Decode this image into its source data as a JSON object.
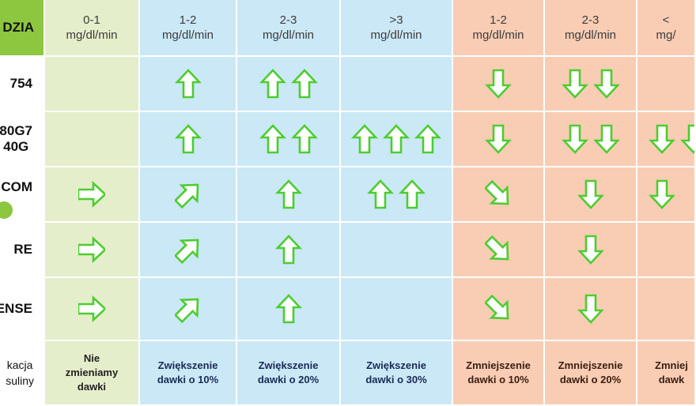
{
  "colors": {
    "label_bg": "#ffffff",
    "label_header_bg": "#8dc63f",
    "nochange_bg": "#e4eecb",
    "increase_bg": "#cbe8f6",
    "decrease_bg": "#f8cdb4",
    "arrow_stroke": "#4ccd2f",
    "arrow_fill": "#ffffff"
  },
  "header": {
    "label": "DZIA",
    "columns": [
      {
        "rate": "0-1",
        "unit": "mg/dl/min"
      },
      {
        "rate": "1-2",
        "unit": "mg/dl/min"
      },
      {
        "rate": "2-3",
        "unit": "mg/dl/min"
      },
      {
        "rate": ">3",
        "unit": "mg/dl/min"
      },
      {
        "rate": "1-2",
        "unit": "mg/dl/min"
      },
      {
        "rate": "2-3",
        "unit": "mg/dl/min"
      },
      {
        "rate": "<",
        "unit": "mg/"
      }
    ]
  },
  "rows": [
    {
      "label": "754",
      "cells": [
        [],
        [
          "up"
        ],
        [
          "up",
          "up"
        ],
        [],
        [
          "down"
        ],
        [
          "down",
          "down"
        ],
        []
      ]
    },
    {
      "label": "80G7\n40G",
      "cells": [
        [],
        [
          "up"
        ],
        [
          "up",
          "up"
        ],
        [
          "up",
          "up",
          "up"
        ],
        [
          "down"
        ],
        [
          "down",
          "down"
        ],
        [
          "down",
          "down"
        ]
      ]
    },
    {
      "label": "COM",
      "cells": [
        [
          "right"
        ],
        [
          "up-right"
        ],
        [
          "up"
        ],
        [
          "up",
          "up"
        ],
        [
          "down-right"
        ],
        [
          "down"
        ],
        [
          "down"
        ]
      ]
    },
    {
      "label": "RE",
      "cells": [
        [
          "right"
        ],
        [
          "up-right"
        ],
        [
          "up"
        ],
        [],
        [
          "down-right"
        ],
        [
          "down"
        ],
        []
      ]
    },
    {
      "label": "ENSE",
      "cells": [
        [
          "right"
        ],
        [
          "up-right"
        ],
        [
          "up"
        ],
        [],
        [
          "down-right"
        ],
        [
          "down"
        ],
        []
      ]
    }
  ],
  "footer": {
    "label": "kacja\nsuliny",
    "cells": [
      "Nie\nzmieniamy\ndawki",
      "Zwiększenie\ndawki o 10%",
      "Zwiększenie\ndawki o 20%",
      "Zwiększenie\ndawki o 30%",
      "Zmniejszenie\ndawki o 10%",
      "Zmniejszenie\ndawki o 20%",
      "Zmniej\ndawk"
    ]
  }
}
